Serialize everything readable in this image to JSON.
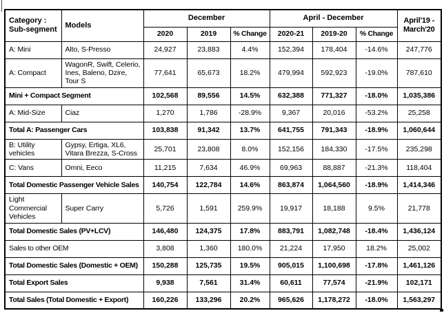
{
  "table": {
    "header": {
      "category": "Category : Sub-segment",
      "models": "Models",
      "groups": [
        {
          "label": "December",
          "cols": [
            "2020",
            "2019",
            "% Change"
          ]
        },
        {
          "label": "April - December",
          "cols": [
            "2020-21",
            "2019-20",
            "% Change"
          ]
        }
      ],
      "fy": "April'19 - March'20"
    },
    "rows": [
      {
        "category": "A: Mini",
        "models": "Alto, S-Presso",
        "bold": false,
        "values": [
          "24,927",
          "23,883",
          "4.4%",
          "152,394",
          "178,404",
          "-14.6%",
          "247,776"
        ]
      },
      {
        "category": "A: Compact",
        "models": "WagonR, Swift, Celerio, Ines, Baleno, Dzire, Tour S",
        "bold": false,
        "values": [
          "77,641",
          "65,673",
          "18.2%",
          "479,994",
          "592,923",
          "-19.0%",
          "787,610"
        ]
      },
      {
        "label": "Mini + Compact Segment",
        "bold": true,
        "values": [
          "102,568",
          "89,556",
          "14.5%",
          "632,388",
          "771,327",
          "-18.0%",
          "1,035,386"
        ]
      },
      {
        "category": "A: Mid-Size",
        "models": "Ciaz",
        "bold": false,
        "values": [
          "1,270",
          "1,786",
          "-28.9%",
          "9,367",
          "20,016",
          "-53.2%",
          "25,258"
        ]
      },
      {
        "label": "Total A: Passenger Cars",
        "bold": true,
        "values": [
          "103,838",
          "91,342",
          "13.7%",
          "641,755",
          "791,343",
          "-18.9%",
          "1,060,644"
        ]
      },
      {
        "category": "B: Utility vehicles",
        "models": "Gypsy, Ertiga, XL6, Vitara Brezza, S-Cross",
        "bold": false,
        "values": [
          "25,701",
          "23,808",
          "8.0%",
          "152,156",
          "184,330",
          "-17.5%",
          "235,298"
        ]
      },
      {
        "category": "C: Vans",
        "models": "Omni, Eeco",
        "bold": false,
        "values": [
          "11,215",
          "7,634",
          "46.9%",
          "69,963",
          "88,887",
          "-21.3%",
          "118,404"
        ]
      },
      {
        "label": "Total Domestic Passenger Vehicle Sales",
        "bold": true,
        "values": [
          "140,754",
          "122,784",
          "14.6%",
          "863,874",
          "1,064,560",
          "-18.9%",
          "1,414,346"
        ]
      },
      {
        "category": "Light Commercial Vehicles",
        "models": "Super Carry",
        "bold": false,
        "values": [
          "5,726",
          "1,591",
          "259.9%",
          "19,917",
          "18,188",
          "9.5%",
          "21,778"
        ]
      },
      {
        "label": "Total Domestic Sales (PV+LCV)",
        "bold": true,
        "values": [
          "146,480",
          "124,375",
          "17.8%",
          "883,791",
          "1,082,748",
          "-18.4%",
          "1,436,124"
        ]
      },
      {
        "label": "Sales to other OEM",
        "bold": false,
        "values": [
          "3,808",
          "1,360",
          "180.0%",
          "21,224",
          "17,950",
          "18.2%",
          "25,002"
        ]
      },
      {
        "label": "Total Domestic Sales (Domestic + OEM)",
        "bold": true,
        "values": [
          "150,288",
          "125,735",
          "19.5%",
          "905,015",
          "1,100,698",
          "-17.8%",
          "1,461,126"
        ]
      },
      {
        "label": "Total Export Sales",
        "bold": true,
        "values": [
          "9,938",
          "7,561",
          "31.4%",
          "60,611",
          "77,574",
          "-21.9%",
          "102,171"
        ]
      },
      {
        "label": "Total Sales (Total Domestic + Export)",
        "bold": true,
        "values": [
          "160,226",
          "133,296",
          "20.2%",
          "965,626",
          "1,178,272",
          "-18.0%",
          "1,563,297"
        ]
      }
    ]
  }
}
